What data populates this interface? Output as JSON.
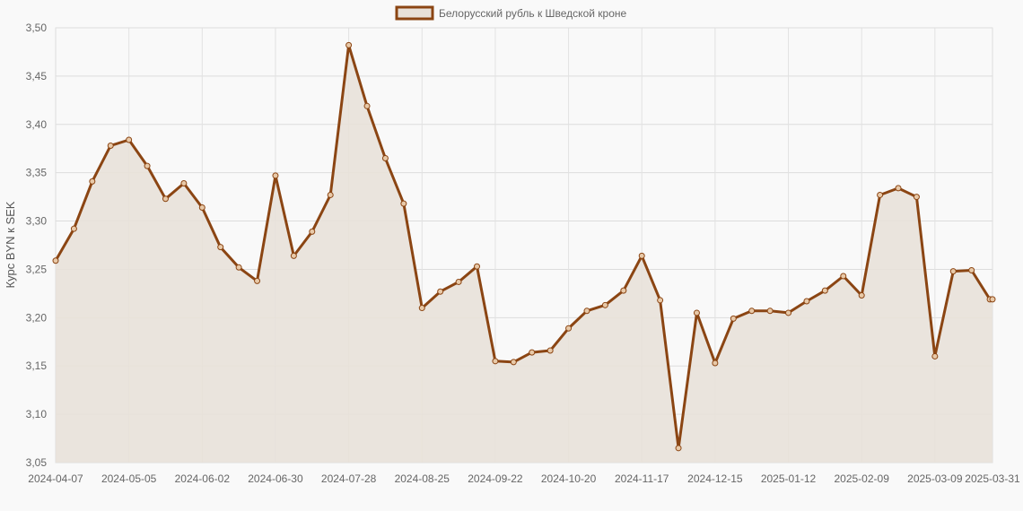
{
  "chart_data": {
    "type": "area",
    "title": "",
    "xlabel": "",
    "ylabel": "Курс BYN к SEK",
    "legend": {
      "position": "top-center"
    },
    "grid": true,
    "ylim": [
      3.05,
      3.5
    ],
    "yticks": [
      "3,05",
      "3,10",
      "3,15",
      "3,20",
      "3,25",
      "3,30",
      "3,35",
      "3,40",
      "3,45",
      "3,50"
    ],
    "xtick_labels": [
      "2024-04-07",
      "2024-05-05",
      "2024-06-02",
      "2024-06-30",
      "2024-07-28",
      "2024-08-25",
      "2024-09-22",
      "2024-10-20",
      "2024-11-17",
      "2024-12-15",
      "2025-01-12",
      "2025-02-09",
      "2025-03-09",
      "2025-03-31"
    ],
    "series": [
      {
        "name": "Белорусский рубль к Шведской кроне",
        "color": "#8b4513",
        "fill": "#e8e1d9",
        "x": [
          "2024-04-07",
          "2024-04-14",
          "2024-04-21",
          "2024-04-28",
          "2024-05-05",
          "2024-05-12",
          "2024-05-19",
          "2024-05-26",
          "2024-06-02",
          "2024-06-09",
          "2024-06-16",
          "2024-06-23",
          "2024-06-30",
          "2024-07-07",
          "2024-07-14",
          "2024-07-21",
          "2024-07-28",
          "2024-08-04",
          "2024-08-11",
          "2024-08-18",
          "2024-08-25",
          "2024-09-01",
          "2024-09-08",
          "2024-09-15",
          "2024-09-22",
          "2024-09-29",
          "2024-10-06",
          "2024-10-13",
          "2024-10-20",
          "2024-10-27",
          "2024-11-03",
          "2024-11-10",
          "2024-11-17",
          "2024-11-24",
          "2024-12-01",
          "2024-12-08",
          "2024-12-15",
          "2024-12-22",
          "2024-12-29",
          "2025-01-05",
          "2025-01-12",
          "2025-01-19",
          "2025-01-26",
          "2025-02-02",
          "2025-02-09",
          "2025-02-16",
          "2025-02-23",
          "2025-03-02",
          "2025-03-09",
          "2025-03-16",
          "2025-03-23",
          "2025-03-30",
          "2025-03-31"
        ],
        "values": [
          3.259,
          3.292,
          3.341,
          3.378,
          3.384,
          3.357,
          3.323,
          3.339,
          3.314,
          3.273,
          3.252,
          3.238,
          3.347,
          3.264,
          3.289,
          3.327,
          3.482,
          3.419,
          3.365,
          3.318,
          3.21,
          3.227,
          3.237,
          3.253,
          3.155,
          3.154,
          3.164,
          3.166,
          3.189,
          3.207,
          3.213,
          3.228,
          3.264,
          3.218,
          3.065,
          3.205,
          3.153,
          3.199,
          3.207,
          3.207,
          3.205,
          3.217,
          3.228,
          3.243,
          3.223,
          3.327,
          3.334,
          3.325,
          3.16,
          3.248,
          3.249,
          3.219,
          3.219
        ]
      }
    ]
  }
}
